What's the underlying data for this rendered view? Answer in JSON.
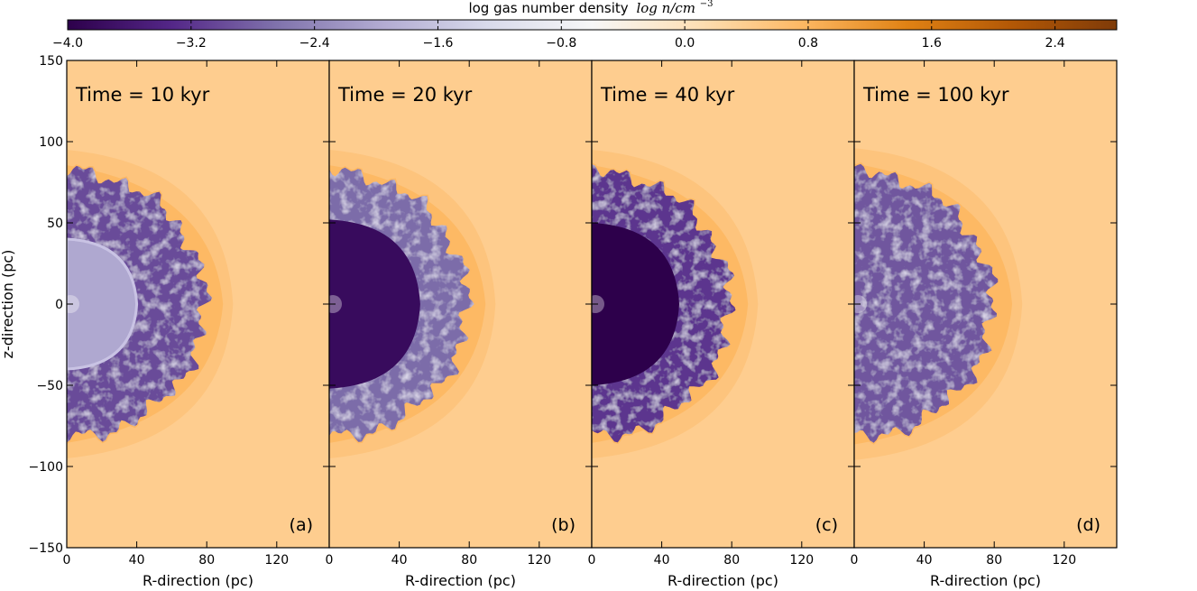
{
  "chart_data": {
    "type": "heatmap",
    "colorbar": {
      "title_text": "log gas number density",
      "title_math": "log n/cm",
      "title_exponent": "−3",
      "range": [
        -4.0,
        2.8
      ],
      "ticks": [
        "−4.0",
        "−3.2",
        "−2.4",
        "−1.6",
        "−0.8",
        "0.0",
        "0.8",
        "1.6",
        "2.4"
      ],
      "tick_values": [
        -4.0,
        -3.2,
        -2.4,
        -1.6,
        -0.8,
        0.0,
        0.8,
        1.6,
        2.4
      ],
      "colormap": "PuOr_r",
      "colors": [
        "#2d004b",
        "#542788",
        "#8073ac",
        "#b2abd2",
        "#d8daeb",
        "#f7f7f7",
        "#fee0b6",
        "#fdb863",
        "#e08214",
        "#b35806",
        "#7f3b08"
      ]
    },
    "x": {
      "label": "R-direction (pc)",
      "range": [
        0,
        150
      ],
      "ticks": [
        "0",
        "40",
        "80",
        "120"
      ],
      "tick_values": [
        0,
        40,
        80,
        120
      ]
    },
    "y": {
      "label": "z-direction (pc)",
      "range": [
        -150,
        150
      ],
      "ticks": [
        "150",
        "100",
        "50",
        "0",
        "−50",
        "−100",
        "−150"
      ],
      "tick_values": [
        150,
        100,
        50,
        0,
        -50,
        -100,
        -150
      ]
    },
    "background_density": 0.4,
    "panels": [
      {
        "tag": "(a)",
        "time": "Time = 10 kyr",
        "shell_outer_pc": 95,
        "bubble_radius_pc": 82,
        "inner_radius_pc": 40,
        "inner_density": -2.0,
        "bubble_density": -3.0
      },
      {
        "tag": "(b)",
        "time": "Time = 20 kyr",
        "shell_outer_pc": 95,
        "bubble_radius_pc": 82,
        "inner_radius_pc": 52,
        "inner_density": -3.8,
        "bubble_density": -2.7
      },
      {
        "tag": "(c)",
        "time": "Time = 40 kyr",
        "shell_outer_pc": 95,
        "bubble_radius_pc": 82,
        "inner_radius_pc": 50,
        "inner_density": -4.0,
        "bubble_density": -3.2
      },
      {
        "tag": "(d)",
        "time": "Time = 100 kyr",
        "shell_outer_pc": 96,
        "bubble_radius_pc": 82,
        "inner_radius_pc": 0,
        "inner_density": -3.0,
        "bubble_density": -2.9
      }
    ]
  }
}
